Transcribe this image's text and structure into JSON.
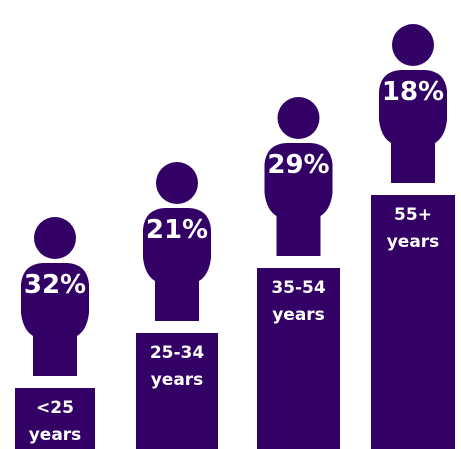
{
  "chart_data": {
    "type": "bar",
    "categories": [
      "<25 years",
      "25-34 years",
      "35-54 years",
      "55+ years"
    ],
    "category_lines": [
      [
        "<25",
        "years"
      ],
      [
        "25-34",
        "years"
      ],
      [
        "35-54",
        "years"
      ],
      [
        "55+",
        "years"
      ]
    ],
    "values": [
      32,
      21,
      29,
      18
    ],
    "value_labels": [
      "32%",
      "21%",
      "29%",
      "18%"
    ],
    "color": "#330066",
    "text_color": "#ffffff",
    "title": "",
    "xlabel": "",
    "ylabel": ""
  }
}
